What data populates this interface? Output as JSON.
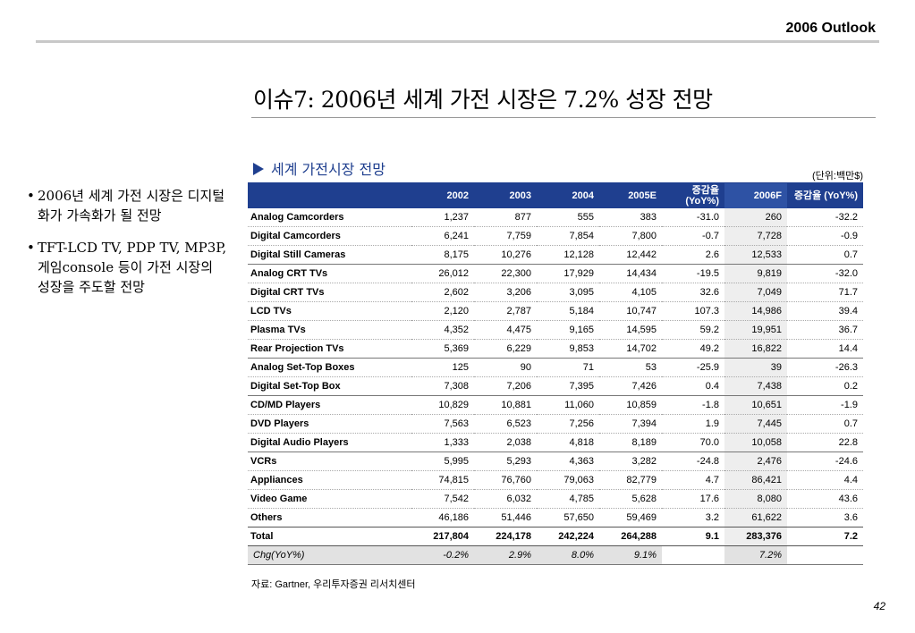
{
  "header": {
    "title": "2006 Outlook"
  },
  "main_title": "이슈7: 2006년 세계 가전 시장은 7.2% 성장 전망",
  "section_label": "세계 가전시장 전망",
  "unit_note": "(단위:백만$)",
  "bullets": [
    "2006년 세계 가전 시장은 디지털화가 가속화가 될 전망",
    "TFT-LCD TV, PDP TV, MP3P, 게임console 등이 가전 시장의 성장을 주도할 전망"
  ],
  "table": {
    "columns": [
      "",
      "2002",
      "2003",
      "2004",
      "2005E",
      "증감율 (YoY%)",
      "2006F",
      "증감율 (YoY%)"
    ],
    "rows": [
      [
        "Analog Camcorders",
        "1,237",
        "877",
        "555",
        "383",
        "-31.0",
        "260",
        "-32.2"
      ],
      [
        "Digital Camcorders",
        "6,241",
        "7,759",
        "7,854",
        "7,800",
        "-0.7",
        "7,728",
        "-0.9"
      ],
      [
        "Digital Still Cameras",
        "8,175",
        "10,276",
        "12,128",
        "12,442",
        "2.6",
        "12,533",
        "0.7"
      ],
      [
        "Analog CRT TVs",
        "26,012",
        "22,300",
        "17,929",
        "14,434",
        "-19.5",
        "9,819",
        "-32.0"
      ],
      [
        "Digital CRT TVs",
        "2,602",
        "3,206",
        "3,095",
        "4,105",
        "32.6",
        "7,049",
        "71.7"
      ],
      [
        "LCD TVs",
        "2,120",
        "2,787",
        "5,184",
        "10,747",
        "107.3",
        "14,986",
        "39.4"
      ],
      [
        "Plasma TVs",
        "4,352",
        "4,475",
        "9,165",
        "14,595",
        "59.2",
        "19,951",
        "36.7"
      ],
      [
        "Rear Projection TVs",
        "5,369",
        "6,229",
        "9,853",
        "14,702",
        "49.2",
        "16,822",
        "14.4"
      ],
      [
        "Analog Set-Top Boxes",
        "125",
        "90",
        "71",
        "53",
        "-25.9",
        "39",
        "-26.3"
      ],
      [
        "Digital Set-Top Box",
        "7,308",
        "7,206",
        "7,395",
        "7,426",
        "0.4",
        "7,438",
        "0.2"
      ],
      [
        "CD/MD Players",
        "10,829",
        "10,881",
        "11,060",
        "10,859",
        "-1.8",
        "10,651",
        "-1.9"
      ],
      [
        "DVD Players",
        "7,563",
        "6,523",
        "7,256",
        "7,394",
        "1.9",
        "7,445",
        "0.7"
      ],
      [
        "Digital Audio Players",
        "1,333",
        "2,038",
        "4,818",
        "8,189",
        "70.0",
        "10,058",
        "22.8"
      ],
      [
        "VCRs",
        "5,995",
        "5,293",
        "4,363",
        "3,282",
        "-24.8",
        "2,476",
        "-24.6"
      ],
      [
        "Appliances",
        "74,815",
        "76,760",
        "79,063",
        "82,779",
        "4.7",
        "86,421",
        "4.4"
      ],
      [
        "Video Game",
        "7,542",
        "6,032",
        "4,785",
        "5,628",
        "17.6",
        "8,080",
        "43.6"
      ],
      [
        "Others",
        "46,186",
        "51,446",
        "57,650",
        "59,469",
        "3.2",
        "61,622",
        "3.6"
      ]
    ],
    "group_ends": [
      2,
      7,
      9,
      12
    ],
    "total": [
      "Total",
      "217,804",
      "224,178",
      "242,224",
      "264,288",
      "9.1",
      "283,376",
      "7.2"
    ],
    "change_row": [
      "Chg(YoY%)",
      "-0.2%",
      "2.9%",
      "8.0%",
      "9.1%",
      "",
      "7.2%",
      ""
    ]
  },
  "source": "자료: Gartner, 우리투자증권 리서치센터",
  "page_number": "42",
  "colors": {
    "header_fill": "#1f3f8f",
    "highlight_column": "#eeeeee"
  }
}
